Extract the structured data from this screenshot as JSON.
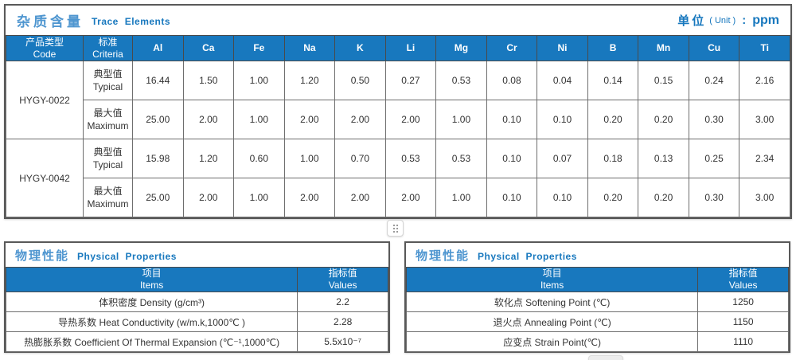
{
  "colors": {
    "header_blue": "#1878be",
    "title_cn_blue": "#4f96d0",
    "title_en_blue": "#1878be",
    "outer_border": "#595959",
    "inner_border": "#6e6e6e",
    "text": "#333333"
  },
  "trace_table": {
    "title_cn": "杂质含量",
    "title_en": "Trace Elements",
    "unit_cn": "单位",
    "unit_paren": "( Unit )",
    "unit_colon": ":",
    "unit_value": "ppm",
    "code_header_cn": "产品类型",
    "code_header_en": "Code",
    "criteria_header_cn": "标准",
    "criteria_header_en": "Criteria",
    "elements": [
      "Al",
      "Ca",
      "Fe",
      "Na",
      "K",
      "Li",
      "Mg",
      "Cr",
      "Ni",
      "B",
      "Mn",
      "Cu",
      "Ti"
    ],
    "products": [
      {
        "code": "HYGY-0022",
        "rows": [
          {
            "criteria_cn": "典型值",
            "criteria_en": "Typical",
            "values": [
              "16.44",
              "1.50",
              "1.00",
              "1.20",
              "0.50",
              "0.27",
              "0.53",
              "0.08",
              "0.04",
              "0.14",
              "0.15",
              "0.24",
              "2.16"
            ]
          },
          {
            "criteria_cn": "最大值",
            "criteria_en": "Maximum",
            "values": [
              "25.00",
              "2.00",
              "1.00",
              "2.00",
              "2.00",
              "2.00",
              "1.00",
              "0.10",
              "0.10",
              "0.20",
              "0.20",
              "0.30",
              "3.00"
            ]
          }
        ]
      },
      {
        "code": "HYGY-0042",
        "rows": [
          {
            "criteria_cn": "典型值",
            "criteria_en": "Typical",
            "values": [
              "15.98",
              "1.20",
              "0.60",
              "1.00",
              "0.70",
              "0.53",
              "0.53",
              "0.10",
              "0.07",
              "0.18",
              "0.13",
              "0.25",
              "2.34"
            ]
          },
          {
            "criteria_cn": "最大值",
            "criteria_en": "Maximum",
            "values": [
              "25.00",
              "2.00",
              "1.00",
              "2.00",
              "2.00",
              "2.00",
              "1.00",
              "0.10",
              "0.10",
              "0.20",
              "0.20",
              "0.30",
              "3.00"
            ]
          }
        ]
      }
    ]
  },
  "physical_left": {
    "title_cn": "物理性能",
    "title_en": "Physical Properties",
    "items_header_cn": "项目",
    "items_header_en": "Items",
    "values_header_cn": "指标值",
    "values_header_en": "Values",
    "rows": [
      {
        "item": "体积密度 Density (g/cm³)",
        "value": "2.2"
      },
      {
        "item": "导热系数 Heat Conductivity (w/m.k,1000℃ )",
        "value": "2.28"
      },
      {
        "item": "热膨胀系数 Coefficient Of Thermal Expansion (℃⁻¹,1000℃)",
        "value": "5.5x10⁻⁷"
      }
    ]
  },
  "physical_right": {
    "title_cn": "物理性能",
    "title_en": "Physical Properties",
    "items_header_cn": "项目",
    "items_header_en": "Items",
    "values_header_cn": "指标值",
    "values_header_en": "Values",
    "rows": [
      {
        "item": "软化点 Softening Point (℃)",
        "value": "1250"
      },
      {
        "item": "退火点 Annealing Point (℃)",
        "value": "1150"
      },
      {
        "item": "应变点 Strain Point(℃)",
        "value": "1110"
      }
    ]
  },
  "icons": {
    "grip_mid": "drag-handle",
    "grip_bottom": "drag-handle"
  }
}
